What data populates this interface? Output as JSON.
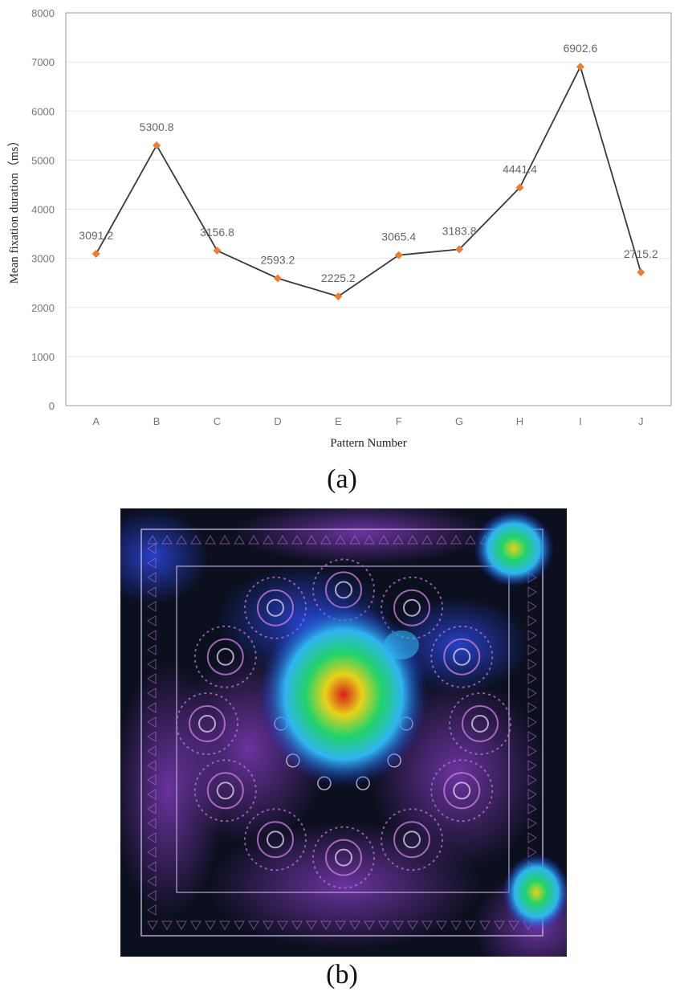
{
  "chart_data": {
    "type": "line",
    "categories": [
      "A",
      "B",
      "C",
      "D",
      "E",
      "F",
      "G",
      "H",
      "I",
      "J"
    ],
    "values": [
      3091.2,
      5300.8,
      3156.8,
      2593.2,
      2225.2,
      3065.4,
      3183.8,
      4441.4,
      6902.6,
      2715.2
    ],
    "data_labels": [
      "3091.2",
      "5300.8",
      "3156.8",
      "2593.2",
      "2225.2",
      "3065.4",
      "3183.8",
      "4441.4",
      "6902.6",
      "2715.2"
    ],
    "xlabel": "Pattern Number",
    "ylabel": "Mean fixation duration（ms）",
    "ylim": [
      0,
      8000
    ],
    "yticks": [
      0,
      1000,
      2000,
      3000,
      4000,
      5000,
      6000,
      7000,
      8000
    ],
    "grid": true,
    "legend": "none",
    "line_color": "#3a3a3a",
    "marker_color": "#ed7d31",
    "grid_color": "#e6e6e6"
  },
  "captions": {
    "a": "(a)",
    "b": "(b)"
  },
  "heatmap_image": {
    "background": "#0b0f1e",
    "hotspot_colors": [
      "#1a2fd6",
      "#2fb4f0",
      "#22d36a",
      "#e8d21a",
      "#d6201a"
    ],
    "pattern_color": "#c17bd6"
  }
}
